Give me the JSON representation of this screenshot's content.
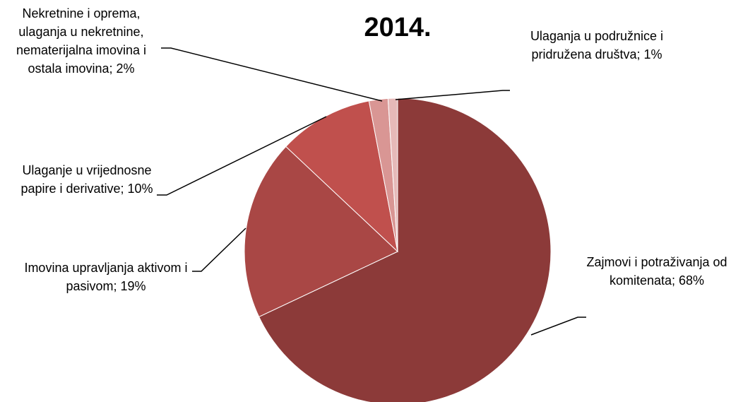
{
  "chart_data": {
    "type": "pie",
    "title": "2014.",
    "values": [
      68,
      19,
      10,
      2,
      1
    ],
    "value_labels": [
      "Zajmovi i potraživanja od komitenata; 68%",
      "Imovina upravljanja aktivom i pasivom; 19%",
      "Ulaganje u vrijednosne papire i derivative; 10%",
      "Nekretnine i oprema, ulaganja u nekretnine, nematerijalna imovina i ostala imovina; 2%",
      "Ulaganja u podružnice i pridružena društva; 1%"
    ],
    "colors": [
      "#8c3a39",
      "#a94745",
      "#c0504d",
      "#d99694",
      "#e6b9b8"
    ]
  }
}
